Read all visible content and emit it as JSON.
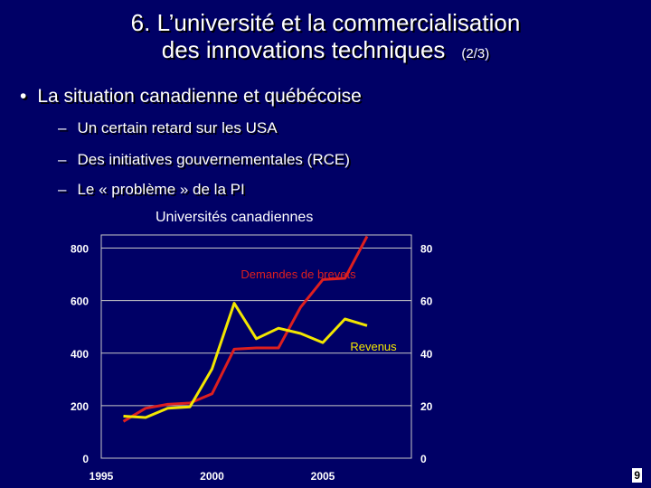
{
  "slide": {
    "title_line1": "6. L’université et la commercialisation",
    "title_line2": "des innovations techniques",
    "title_part": "(2/3)",
    "bullet": "La situation canadienne et québécoise",
    "subbullets": [
      "Un certain retard sur les USA",
      "Des initiatives gouvernementales (RCE)",
      "Le « problème » de la PI"
    ],
    "page_number": "9"
  },
  "colors": {
    "background": "#000066",
    "brevets": "#dd1f1f",
    "revenus": "#f2e600"
  },
  "chart_data": {
    "type": "line",
    "title": "Universités canadiennes",
    "x_ticks": [
      "1995",
      "2000",
      "2005"
    ],
    "xlim": [
      1995,
      2009
    ],
    "y_left_ticks": [
      "0",
      "200",
      "400",
      "600",
      "800"
    ],
    "y_left_lim": [
      0,
      850
    ],
    "y_right_ticks": [
      "0",
      "20",
      "40",
      "60",
      "80"
    ],
    "y_right_lim": [
      0,
      85
    ],
    "series": [
      {
        "name": "Demandes de brevets",
        "axis": "left",
        "x": [
          1996,
          1997,
          1998,
          1999,
          2000,
          2001,
          2002,
          2003,
          2004,
          2005,
          2006,
          2007,
          2008
        ],
        "values": [
          140,
          190,
          205,
          210,
          245,
          415,
          420,
          420,
          575,
          680,
          685,
          845,
          null
        ]
      },
      {
        "name": "Revenus",
        "axis": "right",
        "x": [
          1996,
          1997,
          1998,
          1999,
          2000,
          2001,
          2002,
          2003,
          2004,
          2005,
          2006,
          2007
        ],
        "values": [
          16,
          15.5,
          19,
          19.5,
          34,
          59,
          45.5,
          49.5,
          47.5,
          44,
          53,
          50.5
        ]
      }
    ]
  }
}
